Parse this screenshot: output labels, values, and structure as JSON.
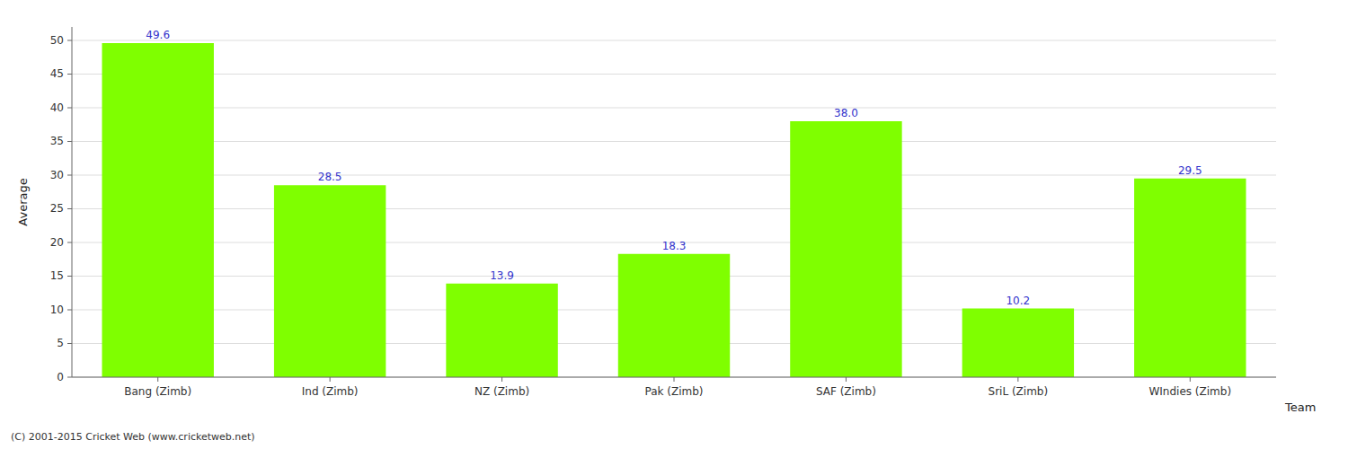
{
  "chart_data": {
    "type": "bar",
    "categories": [
      "Bang (Zimb)",
      "Ind (Zimb)",
      "NZ (Zimb)",
      "Pak (Zimb)",
      "SAF (Zimb)",
      "SriL (Zimb)",
      "WIndies (Zimb)"
    ],
    "values": [
      49.6,
      28.5,
      13.9,
      18.3,
      38.0,
      10.2,
      29.5
    ],
    "value_labels": [
      "49.6",
      "28.5",
      "13.9",
      "18.3",
      "38.0",
      "10.2",
      "29.5"
    ],
    "color": "#7fff00",
    "xlabel": "Team",
    "ylabel": "Average",
    "ylim": [
      0,
      52
    ],
    "yticks": [
      0,
      5,
      10,
      15,
      20,
      25,
      30,
      35,
      40,
      45,
      50
    ],
    "grid": true,
    "data_labels": true,
    "footnote": "(C) 2001-2015 Cricket Web (www.cricketweb.net)"
  }
}
